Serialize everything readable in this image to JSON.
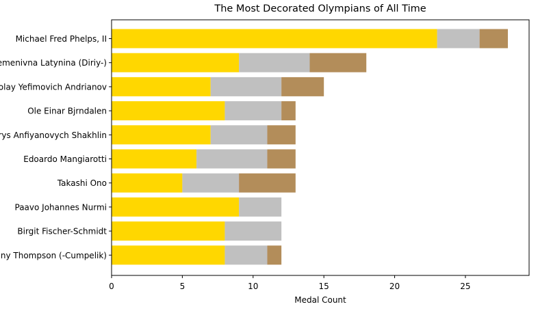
{
  "chart_data": {
    "type": "bar",
    "orientation": "horizontal",
    "stacked": true,
    "title": "The Most Decorated Olympians of All Time",
    "xlabel": "Medal Count",
    "ylabel": "",
    "xlim": [
      0,
      29.5
    ],
    "xticks": [
      "0",
      "5",
      "10",
      "15",
      "20",
      "25"
    ],
    "grid": false,
    "categories": [
      "Michael Fred Phelps, II",
      "Larysa Semenivna Latynina (Diriy-)",
      "Nikolay Yefimovich Andrianov",
      "Ole Einar Bjrndalen",
      "Borys Anfiyanovych Shakhlin",
      "Edoardo Mangiarotti",
      "Takashi Ono",
      "Paavo Johannes Nurmi",
      "Birgit Fischer-Schmidt",
      "Jenny Thompson (-Cumpelik)"
    ],
    "series": [
      {
        "values": [
          23,
          9,
          7,
          8,
          7,
          6,
          5,
          9,
          8,
          8
        ],
        "color": "#FFD700"
      },
      {
        "values": [
          3,
          5,
          5,
          4,
          4,
          5,
          4,
          3,
          4,
          3
        ],
        "color": "#C0C0C0"
      },
      {
        "values": [
          2,
          4,
          3,
          1,
          2,
          2,
          4,
          0,
          0,
          1
        ],
        "color": "#B38D5A"
      }
    ]
  }
}
